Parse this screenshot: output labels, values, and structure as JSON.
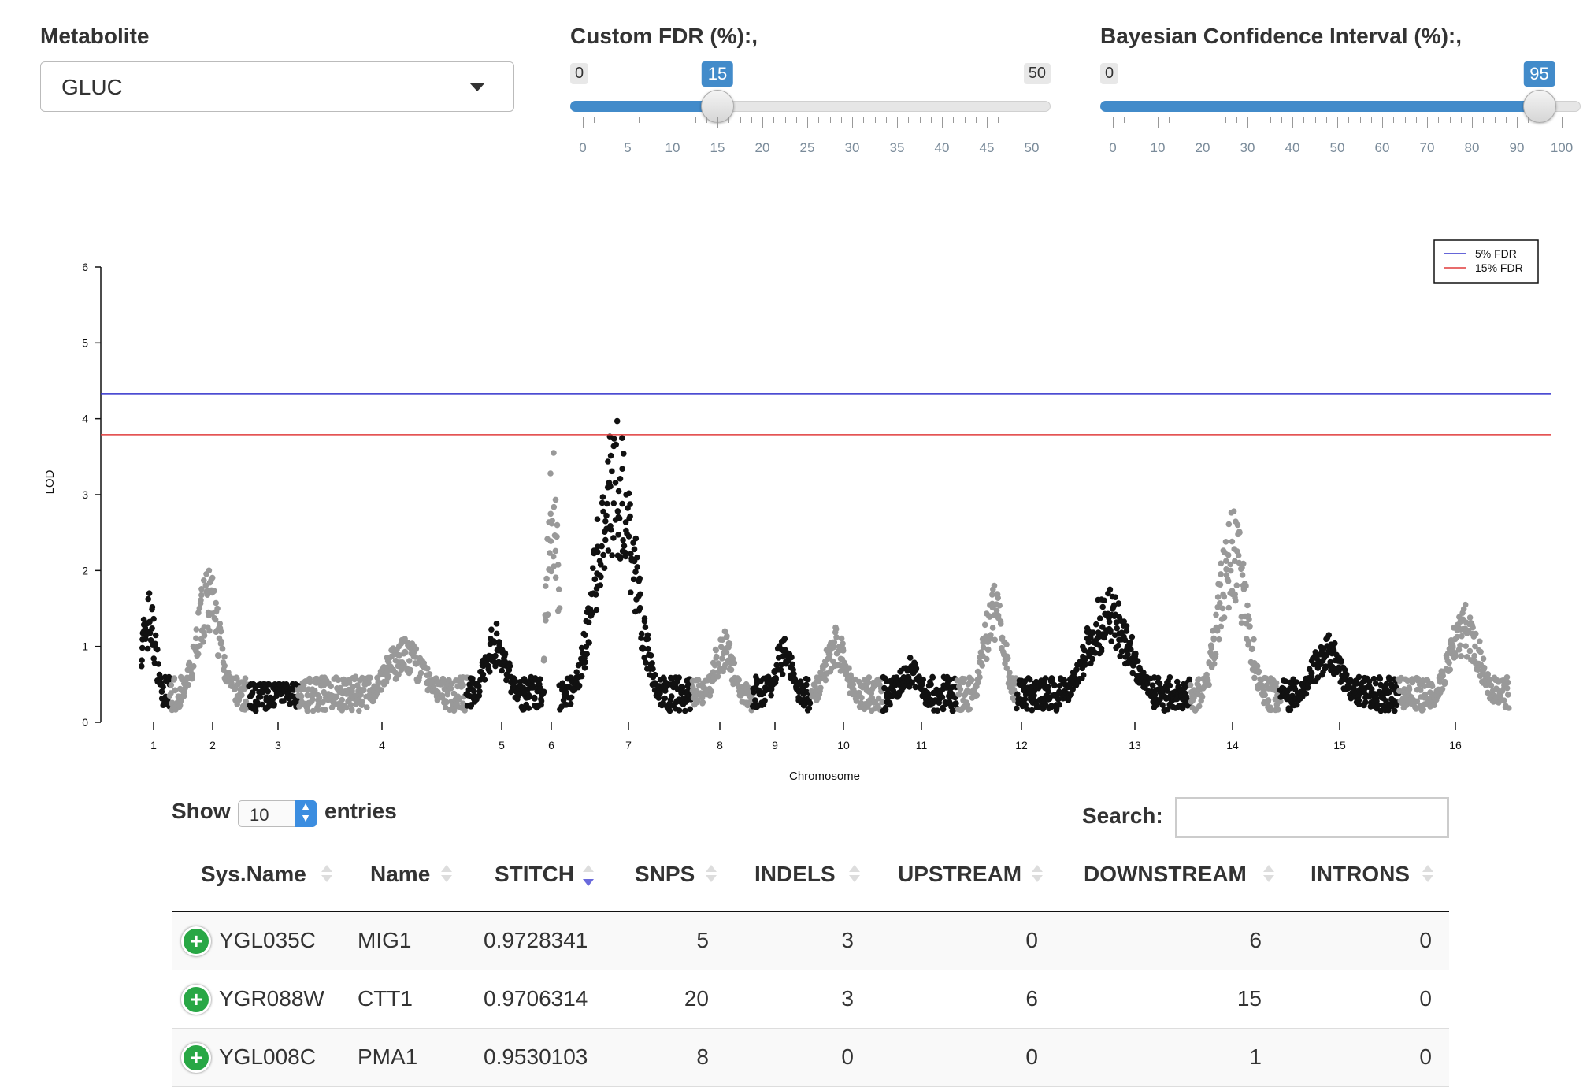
{
  "metabolite": {
    "label": "Metabolite",
    "value": "GLUC"
  },
  "fdr_slider": {
    "label": "Custom FDR (%):,",
    "min": "0",
    "max": "50",
    "value": "15",
    "value_num": 15,
    "ticks": [
      "0",
      "5",
      "10",
      "15",
      "20",
      "25",
      "30",
      "35",
      "40",
      "45",
      "50"
    ]
  },
  "bci_slider": {
    "label": "Bayesian Confidence Interval (%):,",
    "min": "0",
    "value": "95",
    "value_num": 95,
    "ticks": [
      "0",
      "10",
      "20",
      "30",
      "40",
      "50",
      "60",
      "70",
      "80",
      "90",
      "100"
    ]
  },
  "chart_data": {
    "type": "scatter",
    "xlabel": "Chromosome",
    "ylabel": "LOD",
    "ylim": [
      0,
      6
    ],
    "yticks": [
      "0",
      "1",
      "2",
      "3",
      "4",
      "5",
      "6"
    ],
    "categories": [
      "1",
      "2",
      "3",
      "4",
      "5",
      "6",
      "7",
      "8",
      "9",
      "10",
      "11",
      "12",
      "13",
      "14",
      "15",
      "16"
    ],
    "colors": {
      "odd_chromosome": "#111111",
      "even_chromosome": "#999999",
      "line_5pct": "#3333cc",
      "line_15pct": "#e03c3c"
    },
    "legend": {
      "placement": "top-right",
      "entries": [
        "5% FDR",
        "15% FDR"
      ]
    },
    "thresholds": [
      {
        "name": "5% FDR",
        "value": 4.33
      },
      {
        "name": "15% FDR",
        "value": 3.79
      }
    ],
    "peak_lod_by_chromosome": [
      {
        "chromosome": "1",
        "max_lod": 1.7
      },
      {
        "chromosome": "2",
        "max_lod": 2.0
      },
      {
        "chromosome": "3",
        "max_lod": 0.5
      },
      {
        "chromosome": "4",
        "max_lod": 1.1
      },
      {
        "chromosome": "5",
        "max_lod": 1.3
      },
      {
        "chromosome": "6",
        "max_lod": 3.55
      },
      {
        "chromosome": "7",
        "max_lod": 3.97
      },
      {
        "chromosome": "8",
        "max_lod": 1.2
      },
      {
        "chromosome": "9",
        "max_lod": 1.1
      },
      {
        "chromosome": "10",
        "max_lod": 1.25
      },
      {
        "chromosome": "11",
        "max_lod": 0.85
      },
      {
        "chromosome": "12",
        "max_lod": 1.8
      },
      {
        "chromosome": "13",
        "max_lod": 1.75
      },
      {
        "chromosome": "14",
        "max_lod": 2.78
      },
      {
        "chromosome": "15",
        "max_lod": 1.15
      },
      {
        "chromosome": "16",
        "max_lod": 1.55
      }
    ]
  },
  "table": {
    "show_label": "Show",
    "length_value": "10",
    "entries_label": "entries",
    "search_label": "Search:",
    "search_value": "",
    "columns": [
      "Sys.Name",
      "Name",
      "STITCH",
      "SNPS",
      "INDELS",
      "UPSTREAM",
      "DOWNSTREAM",
      "INTRONS"
    ],
    "rows": [
      [
        "YGL035C",
        "MIG1",
        "0.9728341",
        "5",
        "3",
        "0",
        "6",
        "0"
      ],
      [
        "YGR088W",
        "CTT1",
        "0.9706314",
        "20",
        "3",
        "6",
        "15",
        "0"
      ],
      [
        "YGL008C",
        "PMA1",
        "0.9530103",
        "8",
        "0",
        "0",
        "1",
        "0"
      ]
    ]
  }
}
